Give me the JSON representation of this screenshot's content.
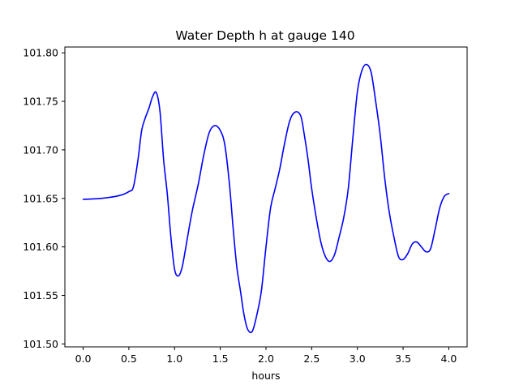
{
  "chart_data": {
    "type": "line",
    "title": "Water Depth h at gauge 140",
    "xlabel": "hours",
    "ylabel": "",
    "xlim": [
      -0.2,
      4.2
    ],
    "ylim": [
      101.497,
      101.806
    ],
    "xticks": [
      0.0,
      0.5,
      1.0,
      1.5,
      2.0,
      2.5,
      3.0,
      3.5,
      4.0
    ],
    "xtick_labels": [
      "0.0",
      "0.5",
      "1.0",
      "1.5",
      "2.0",
      "2.5",
      "3.0",
      "3.5",
      "4.0"
    ],
    "yticks": [
      101.5,
      101.55,
      101.6,
      101.65,
      101.7,
      101.75,
      101.8
    ],
    "ytick_labels": [
      "101.50",
      "101.55",
      "101.60",
      "101.65",
      "101.70",
      "101.75",
      "101.80"
    ],
    "grid": false,
    "series": [
      {
        "color": "#0000ff",
        "x": [
          0.0,
          0.2,
          0.4,
          0.5,
          0.55,
          0.6,
          0.64,
          0.68,
          0.72,
          0.76,
          0.8,
          0.84,
          0.88,
          0.92,
          0.96,
          1.0,
          1.04,
          1.08,
          1.12,
          1.16,
          1.2,
          1.26,
          1.32,
          1.38,
          1.44,
          1.5,
          1.55,
          1.6,
          1.64,
          1.68,
          1.72,
          1.76,
          1.8,
          1.85,
          1.9,
          1.95,
          2.0,
          2.05,
          2.1,
          2.15,
          2.2,
          2.26,
          2.32,
          2.38,
          2.42,
          2.46,
          2.5,
          2.55,
          2.6,
          2.65,
          2.7,
          2.75,
          2.8,
          2.85,
          2.9,
          2.95,
          3.0,
          3.05,
          3.1,
          3.15,
          3.2,
          3.25,
          3.3,
          3.35,
          3.4,
          3.45,
          3.5,
          3.55,
          3.6,
          3.65,
          3.7,
          3.75,
          3.8,
          3.85,
          3.9,
          3.95,
          4.0
        ],
        "y": [
          101.649,
          101.65,
          101.653,
          101.657,
          101.662,
          101.69,
          101.72,
          101.733,
          101.743,
          101.755,
          101.759,
          101.74,
          101.69,
          101.655,
          101.61,
          101.577,
          101.57,
          101.578,
          101.598,
          101.62,
          101.64,
          101.665,
          101.695,
          101.718,
          101.725,
          101.72,
          101.705,
          101.665,
          101.62,
          101.58,
          101.555,
          101.53,
          101.515,
          101.513,
          101.53,
          101.555,
          101.6,
          101.64,
          101.66,
          101.68,
          101.705,
          101.73,
          101.739,
          101.735,
          101.715,
          101.69,
          101.66,
          101.63,
          101.605,
          101.59,
          101.585,
          101.592,
          101.61,
          101.63,
          101.66,
          101.712,
          101.76,
          101.782,
          101.788,
          101.78,
          101.75,
          101.715,
          101.67,
          101.635,
          101.61,
          101.59,
          101.587,
          101.593,
          101.603,
          101.605,
          101.6,
          101.595,
          101.598,
          101.618,
          101.64,
          101.652,
          101.655
        ]
      }
    ]
  }
}
